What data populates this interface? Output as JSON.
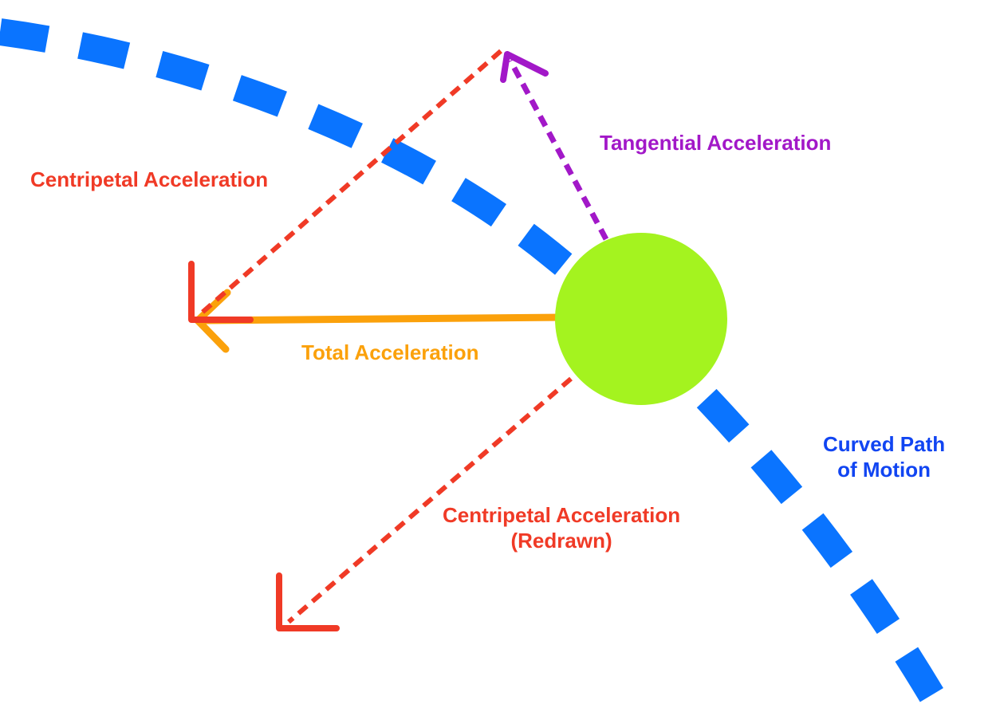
{
  "labels": {
    "tangential": "Tangential Acceleration",
    "centripetal": "Centripetal Acceleration",
    "total": "Total Acceleration",
    "path_line1": "Curved Path",
    "path_line2": "of Motion",
    "redrawn_line1": "Centripetal Acceleration",
    "redrawn_line2": "(Redrawn)"
  },
  "colors": {
    "path": "#0a74ff",
    "centripetal": "#f03a26",
    "tangential": "#a218c8",
    "total": "#fba10b",
    "object": "#a4f31f",
    "path_label": "#1145f2",
    "background": "#ffffff"
  }
}
